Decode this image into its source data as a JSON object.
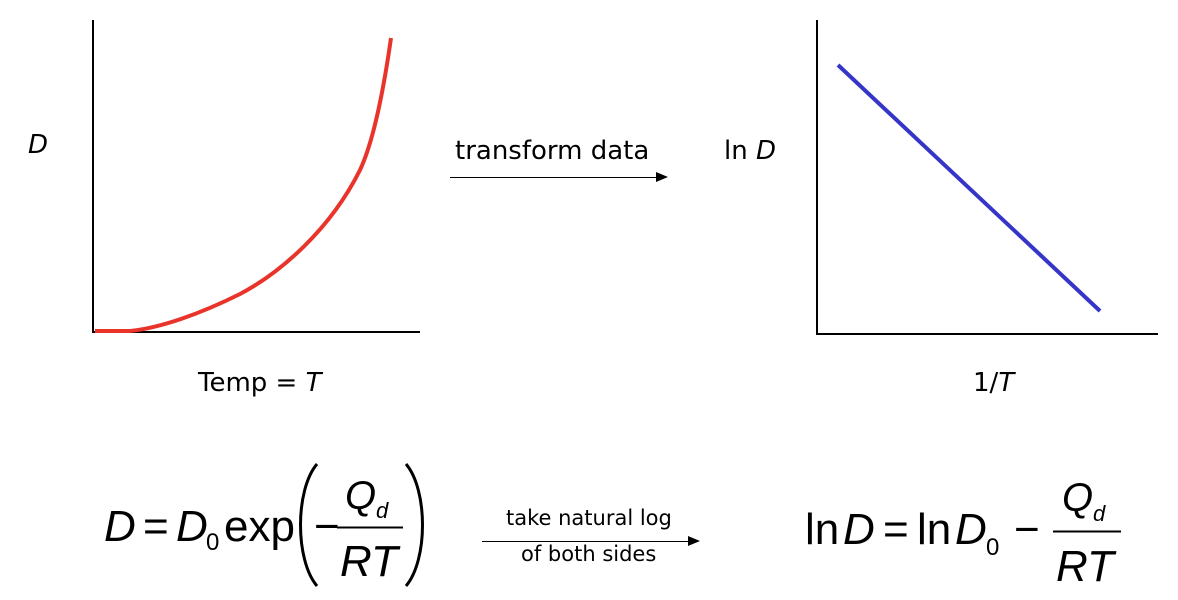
{
  "left_plot": {
    "y_label": "D",
    "x_label_prefix": "Temp = ",
    "x_label_var": "T",
    "curve_color": "#e8342a"
  },
  "right_plot": {
    "y_label_prefix": "ln ",
    "y_label_var": "D",
    "x_label_prefix": "1/",
    "x_label_var": "T",
    "line_color": "#3535c8"
  },
  "top_arrow": {
    "label": "transform data"
  },
  "bottom_arrow": {
    "label_line1": "take natural log",
    "label_line2": "of both sides"
  },
  "left_equation": {
    "lhs": "D",
    "equals": "=",
    "coef": "D",
    "coef_sub": "0",
    "func": "exp",
    "minus": "−",
    "num": "Q",
    "num_sub": "d",
    "den": "RT"
  },
  "right_equation": {
    "ln1": "ln",
    "lhs": "D",
    "equals": "=",
    "ln2": "ln",
    "coef": "D",
    "coef_sub": "0",
    "minus": "−",
    "num": "Q",
    "num_sub": "d",
    "den": "RT"
  }
}
